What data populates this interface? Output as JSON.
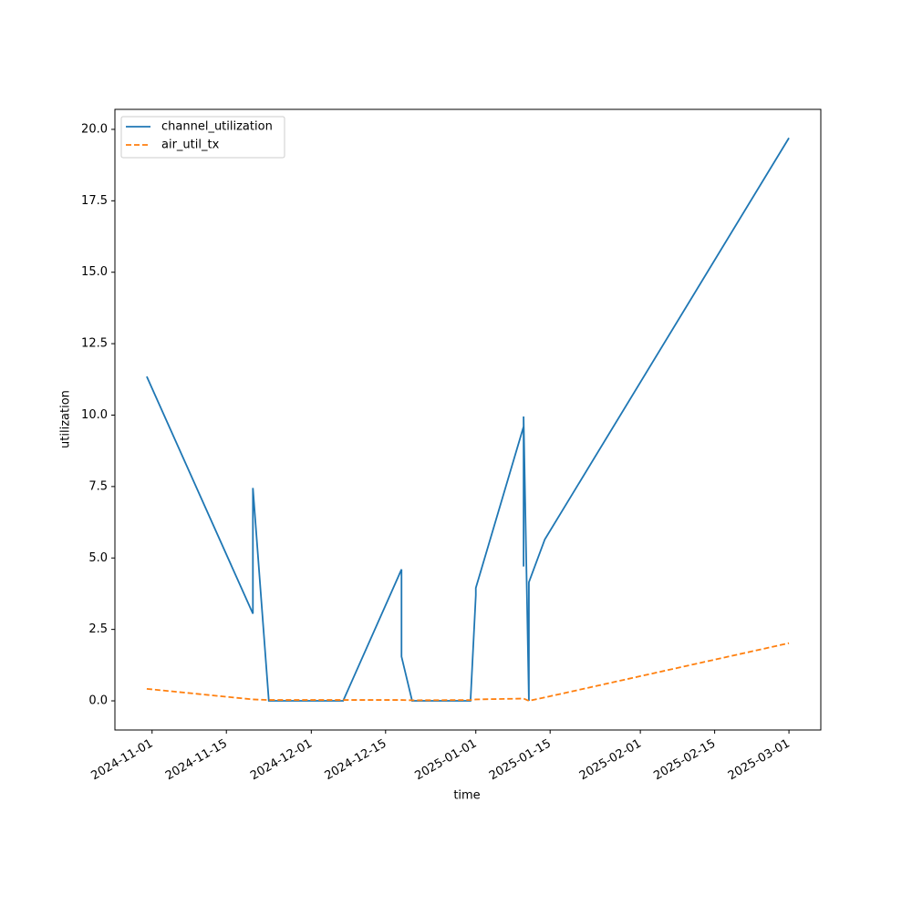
{
  "chart_data": {
    "type": "line",
    "xlabel": "time",
    "ylabel": "utilization",
    "x": [
      "2024-10-31",
      "2024-11-20",
      "2024-11-20",
      "2024-11-23",
      "2024-12-07",
      "2024-12-18",
      "2024-12-18",
      "2024-12-20",
      "2024-12-31",
      "2025-01-01",
      "2025-01-01",
      "2025-01-10",
      "2025-01-10",
      "2025-01-10",
      "2025-01-11",
      "2025-01-11",
      "2025-01-14",
      "2025-03-01"
    ],
    "series": [
      {
        "name": "channel_utilization",
        "color": "#1f77b4",
        "linestyle": "solid",
        "values": [
          11.35,
          3.05,
          7.45,
          0.0,
          0.0,
          4.6,
          1.55,
          0.0,
          0.0,
          3.7,
          3.95,
          9.6,
          4.7,
          9.95,
          0.0,
          4.15,
          5.65,
          19.7
        ]
      },
      {
        "name": "air_util_tx",
        "color": "#ff7f0e",
        "linestyle": "dashed",
        "values": [
          0.42,
          0.05,
          0.05,
          0.03,
          0.03,
          0.03,
          0.03,
          0.02,
          0.03,
          0.05,
          0.05,
          0.08,
          0.08,
          0.08,
          0.0,
          0.0,
          0.12,
          2.02
        ]
      }
    ],
    "xlim": [
      "2024-10-25",
      "2025-03-07"
    ],
    "xticks": [
      "2024-11-01",
      "2024-11-15",
      "2024-12-01",
      "2024-12-15",
      "2025-01-01",
      "2025-01-15",
      "2025-02-01",
      "2025-02-15",
      "2025-03-01"
    ],
    "ylim": [
      -1.02,
      20.7
    ],
    "yticks": [
      {
        "value": 0,
        "label": "0.0"
      },
      2.5,
      {
        "value": 5,
        "label": "5.0"
      },
      7.5,
      {
        "value": 10,
        "label": "10.0"
      },
      12.5,
      {
        "value": 15,
        "label": "15.0"
      },
      17.5,
      {
        "value": 20,
        "label": "20.0"
      }
    ],
    "legend": "upper left",
    "grid": false
  }
}
